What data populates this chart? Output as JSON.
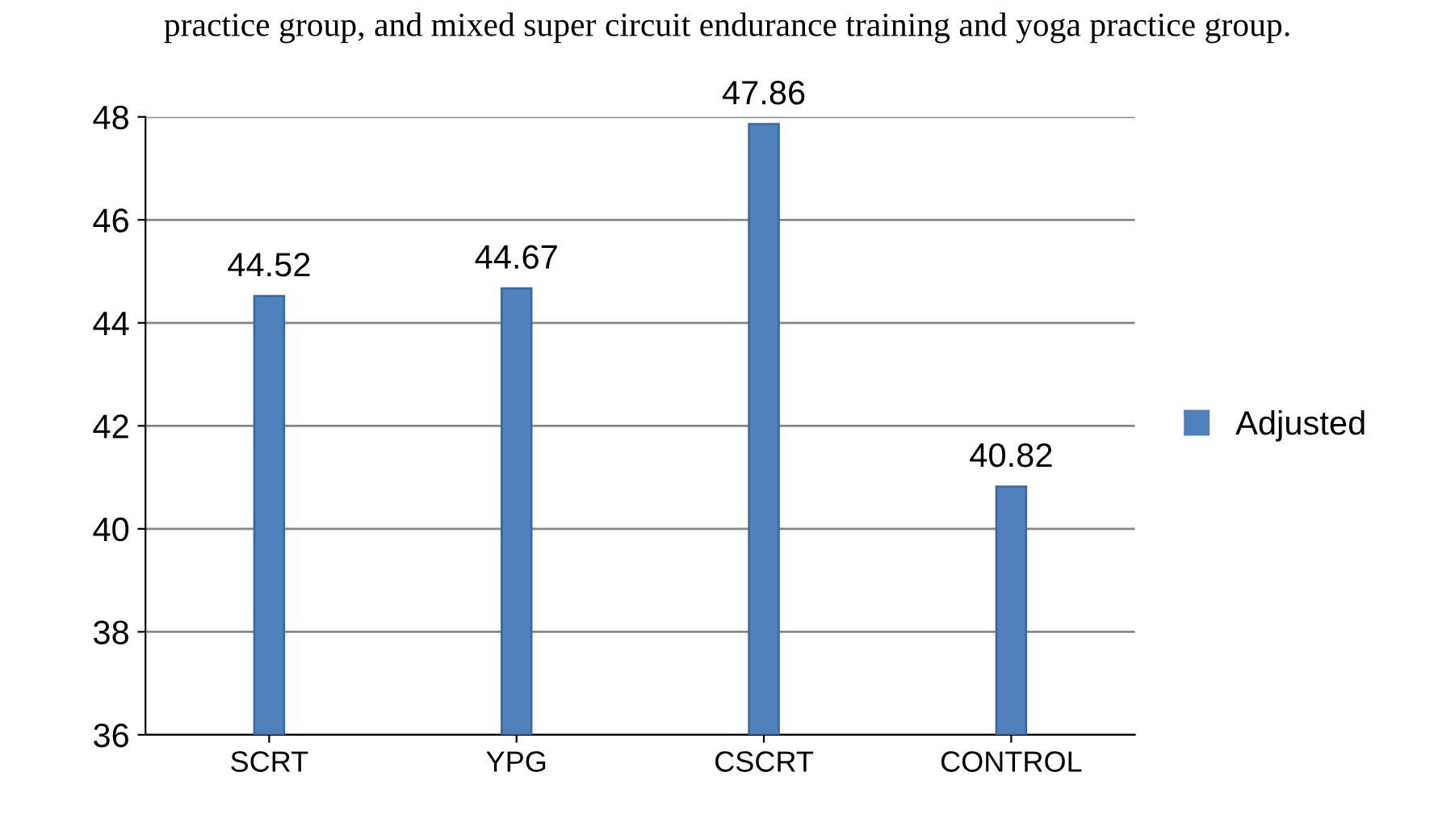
{
  "chart_data": {
    "type": "bar",
    "annotations": [
      "practice group, and mixed super circuit endurance training and yoga practice group."
    ],
    "categories": [
      "SCRT",
      "YPG",
      "CSCRT",
      "CONTROL"
    ],
    "series": [
      {
        "name": "Adjusted",
        "color": "#4f81bd",
        "values": [
          44.52,
          44.67,
          47.86,
          40.82
        ]
      }
    ],
    "ylim": [
      36,
      48
    ],
    "yticks": [
      36,
      38,
      40,
      42,
      44,
      46,
      48
    ],
    "grid": "y",
    "legend": "right",
    "data_labels": true
  }
}
